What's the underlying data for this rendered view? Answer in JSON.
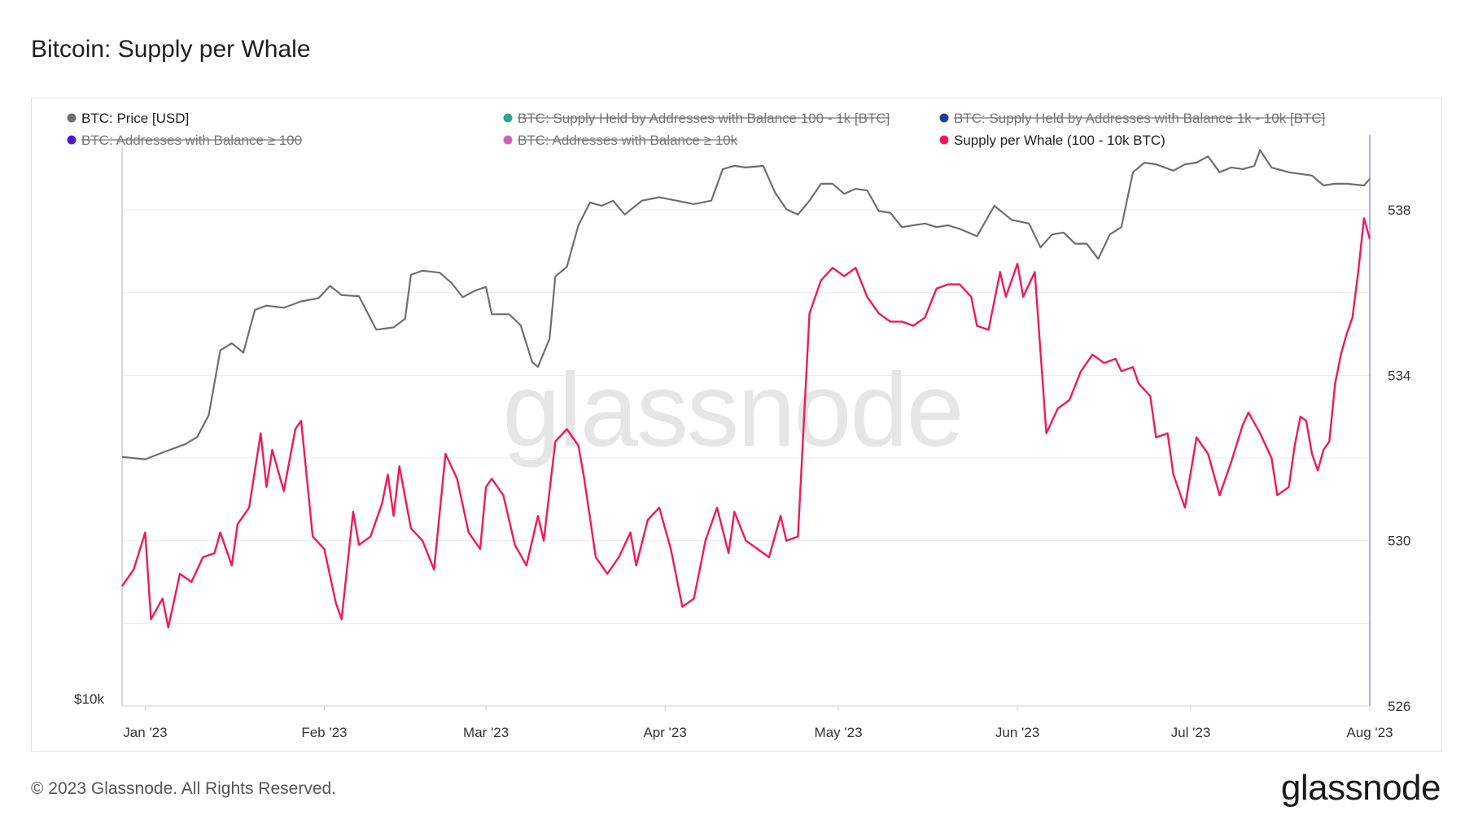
{
  "title": "Bitcoin: Supply per Whale",
  "footer": "© 2023 Glassnode. All Rights Reserved.",
  "brand": "glassnode",
  "watermark": "glassnode",
  "colors": {
    "price": "#6f6f6f",
    "whale": "#f0195a",
    "supply_100_1k": "#26a69a",
    "supply_1k_10k": "#1f3f9f",
    "addr_100": "#4b1ccf",
    "addr_10k": "#d160b8",
    "right_axis_line": "#9b8cf0",
    "grid": "#ebebeb"
  },
  "legend": [
    {
      "label": "BTC: Price [USD]",
      "color_key": "price",
      "active": true
    },
    {
      "label": "BTC: Supply Held by Addresses with Balance 100 - 1k [BTC]",
      "color_key": "supply_100_1k",
      "active": false
    },
    {
      "label": "BTC: Supply Held by Addresses with Balance 1k - 10k [BTC]",
      "color_key": "supply_1k_10k",
      "active": false
    },
    {
      "label": "BTC: Addresses with Balance ≥ 100",
      "color_key": "addr_100",
      "active": false
    },
    {
      "label": "BTC: Addresses with Balance ≥ 10k",
      "color_key": "addr_10k",
      "active": false
    },
    {
      "label": "Supply per Whale (100 - 10k BTC)",
      "color_key": "whale",
      "active": true
    }
  ],
  "chart_data": {
    "type": "line",
    "x_range": [
      "2022-12-28",
      "2023-08-01"
    ],
    "x_ticks": [
      {
        "date": "2023-01-01",
        "label": "Jan '23"
      },
      {
        "date": "2023-02-01",
        "label": "Feb '23"
      },
      {
        "date": "2023-03-01",
        "label": "Mar '23"
      },
      {
        "date": "2023-04-01",
        "label": "Apr '23"
      },
      {
        "date": "2023-05-01",
        "label": "May '23"
      },
      {
        "date": "2023-06-01",
        "label": "Jun '23"
      },
      {
        "date": "2023-07-01",
        "label": "Jul '23"
      },
      {
        "date": "2023-08-01",
        "label": "Aug '23"
      }
    ],
    "y_left": {
      "scale": "log",
      "tick_labels": [
        "$10k"
      ],
      "range": [
        10000,
        40000
      ]
    },
    "y_right": {
      "ticks": [
        526,
        530,
        534,
        538
      ],
      "range": [
        526,
        538.2
      ]
    },
    "grid": true,
    "legend_position": "top",
    "series": [
      {
        "name": "BTC: Price [USD]",
        "axis": "left",
        "color_key": "price",
        "points": [
          [
            "2022-12-28",
            16700
          ],
          [
            "2023-01-01",
            16620
          ],
          [
            "2023-01-04",
            16850
          ],
          [
            "2023-01-08",
            17150
          ],
          [
            "2023-01-10",
            17400
          ],
          [
            "2023-01-12",
            18200
          ],
          [
            "2023-01-14",
            20800
          ],
          [
            "2023-01-16",
            21100
          ],
          [
            "2023-01-18",
            20700
          ],
          [
            "2023-01-20",
            22600
          ],
          [
            "2023-01-22",
            22800
          ],
          [
            "2023-01-25",
            22700
          ],
          [
            "2023-01-28",
            23000
          ],
          [
            "2023-01-31",
            23150
          ],
          [
            "2023-02-02",
            23750
          ],
          [
            "2023-02-04",
            23300
          ],
          [
            "2023-02-07",
            23250
          ],
          [
            "2023-02-10",
            21700
          ],
          [
            "2023-02-13",
            21800
          ],
          [
            "2023-02-15",
            22200
          ],
          [
            "2023-02-16",
            24300
          ],
          [
            "2023-02-18",
            24500
          ],
          [
            "2023-02-21",
            24400
          ],
          [
            "2023-02-23",
            23900
          ],
          [
            "2023-02-25",
            23200
          ],
          [
            "2023-02-27",
            23500
          ],
          [
            "2023-03-01",
            23700
          ],
          [
            "2023-03-02",
            22400
          ],
          [
            "2023-03-05",
            22400
          ],
          [
            "2023-03-07",
            21900
          ],
          [
            "2023-03-09",
            20300
          ],
          [
            "2023-03-10",
            20100
          ],
          [
            "2023-03-12",
            21300
          ],
          [
            "2023-03-13",
            24200
          ],
          [
            "2023-03-15",
            24700
          ],
          [
            "2023-03-17",
            26900
          ],
          [
            "2023-03-19",
            28200
          ],
          [
            "2023-03-21",
            28000
          ],
          [
            "2023-03-23",
            28300
          ],
          [
            "2023-03-25",
            27500
          ],
          [
            "2023-03-28",
            28300
          ],
          [
            "2023-03-31",
            28500
          ],
          [
            "2023-04-03",
            28300
          ],
          [
            "2023-04-06",
            28100
          ],
          [
            "2023-04-09",
            28300
          ],
          [
            "2023-04-11",
            30200
          ],
          [
            "2023-04-13",
            30400
          ],
          [
            "2023-04-15",
            30300
          ],
          [
            "2023-04-18",
            30400
          ],
          [
            "2023-04-20",
            28800
          ],
          [
            "2023-04-22",
            27800
          ],
          [
            "2023-04-24",
            27500
          ],
          [
            "2023-04-26",
            28300
          ],
          [
            "2023-04-28",
            29300
          ],
          [
            "2023-04-30",
            29300
          ],
          [
            "2023-05-02",
            28700
          ],
          [
            "2023-05-04",
            29000
          ],
          [
            "2023-05-06",
            28900
          ],
          [
            "2023-05-08",
            27700
          ],
          [
            "2023-05-10",
            27600
          ],
          [
            "2023-05-12",
            26800
          ],
          [
            "2023-05-14",
            26900
          ],
          [
            "2023-05-16",
            27000
          ],
          [
            "2023-05-18",
            26800
          ],
          [
            "2023-05-20",
            26900
          ],
          [
            "2023-05-22",
            26700
          ],
          [
            "2023-05-25",
            26300
          ],
          [
            "2023-05-28",
            28000
          ],
          [
            "2023-05-31",
            27200
          ],
          [
            "2023-06-03",
            27000
          ],
          [
            "2023-06-05",
            25700
          ],
          [
            "2023-06-07",
            26400
          ],
          [
            "2023-06-09",
            26500
          ],
          [
            "2023-06-11",
            25900
          ],
          [
            "2023-06-13",
            25900
          ],
          [
            "2023-06-15",
            25100
          ],
          [
            "2023-06-17",
            26400
          ],
          [
            "2023-06-19",
            26800
          ],
          [
            "2023-06-21",
            30000
          ],
          [
            "2023-06-23",
            30600
          ],
          [
            "2023-06-25",
            30500
          ],
          [
            "2023-06-28",
            30100
          ],
          [
            "2023-06-30",
            30500
          ],
          [
            "2023-07-02",
            30600
          ],
          [
            "2023-07-04",
            31000
          ],
          [
            "2023-07-06",
            30000
          ],
          [
            "2023-07-08",
            30300
          ],
          [
            "2023-07-10",
            30200
          ],
          [
            "2023-07-12",
            30400
          ],
          [
            "2023-07-13",
            31400
          ],
          [
            "2023-07-15",
            30300
          ],
          [
            "2023-07-18",
            30000
          ],
          [
            "2023-07-20",
            29900
          ],
          [
            "2023-07-22",
            29800
          ],
          [
            "2023-07-24",
            29200
          ],
          [
            "2023-07-26",
            29300
          ],
          [
            "2023-07-28",
            29300
          ],
          [
            "2023-07-31",
            29200
          ],
          [
            "2023-08-01",
            29600
          ]
        ]
      },
      {
        "name": "Supply per Whale (100 - 10k BTC)",
        "axis": "right",
        "color_key": "whale",
        "points": [
          [
            "2022-12-28",
            528.9
          ],
          [
            "2022-12-30",
            529.3
          ],
          [
            "2023-01-01",
            530.2
          ],
          [
            "2023-01-02",
            528.1
          ],
          [
            "2023-01-04",
            528.6
          ],
          [
            "2023-01-05",
            527.9
          ],
          [
            "2023-01-07",
            529.2
          ],
          [
            "2023-01-09",
            529.0
          ],
          [
            "2023-01-11",
            529.6
          ],
          [
            "2023-01-13",
            529.7
          ],
          [
            "2023-01-14",
            530.2
          ],
          [
            "2023-01-16",
            529.4
          ],
          [
            "2023-01-17",
            530.4
          ],
          [
            "2023-01-19",
            530.8
          ],
          [
            "2023-01-21",
            532.6
          ],
          [
            "2023-01-22",
            531.3
          ],
          [
            "2023-01-23",
            532.2
          ],
          [
            "2023-01-25",
            531.2
          ],
          [
            "2023-01-27",
            532.7
          ],
          [
            "2023-01-28",
            532.9
          ],
          [
            "2023-01-30",
            530.1
          ],
          [
            "2023-02-01",
            529.8
          ],
          [
            "2023-02-03",
            528.5
          ],
          [
            "2023-02-04",
            528.1
          ],
          [
            "2023-02-06",
            530.7
          ],
          [
            "2023-02-07",
            529.9
          ],
          [
            "2023-02-09",
            530.1
          ],
          [
            "2023-02-11",
            530.9
          ],
          [
            "2023-02-12",
            531.6
          ],
          [
            "2023-02-13",
            530.6
          ],
          [
            "2023-02-14",
            531.8
          ],
          [
            "2023-02-16",
            530.3
          ],
          [
            "2023-02-18",
            530.0
          ],
          [
            "2023-02-20",
            529.3
          ],
          [
            "2023-02-22",
            532.1
          ],
          [
            "2023-02-23",
            531.8
          ],
          [
            "2023-02-24",
            531.5
          ],
          [
            "2023-02-26",
            530.2
          ],
          [
            "2023-02-28",
            529.8
          ],
          [
            "2023-03-01",
            531.3
          ],
          [
            "2023-03-02",
            531.5
          ],
          [
            "2023-03-04",
            531.1
          ],
          [
            "2023-03-06",
            529.9
          ],
          [
            "2023-03-08",
            529.4
          ],
          [
            "2023-03-10",
            530.6
          ],
          [
            "2023-03-11",
            530.0
          ],
          [
            "2023-03-13",
            532.4
          ],
          [
            "2023-03-15",
            532.7
          ],
          [
            "2023-03-17",
            532.3
          ],
          [
            "2023-03-18",
            531.5
          ],
          [
            "2023-03-20",
            529.6
          ],
          [
            "2023-03-22",
            529.2
          ],
          [
            "2023-03-24",
            529.6
          ],
          [
            "2023-03-26",
            530.2
          ],
          [
            "2023-03-27",
            529.4
          ],
          [
            "2023-03-29",
            530.5
          ],
          [
            "2023-03-31",
            530.8
          ],
          [
            "2023-04-02",
            529.8
          ],
          [
            "2023-04-04",
            528.4
          ],
          [
            "2023-04-06",
            528.6
          ],
          [
            "2023-04-08",
            530.0
          ],
          [
            "2023-04-10",
            530.8
          ],
          [
            "2023-04-12",
            529.7
          ],
          [
            "2023-04-13",
            530.7
          ],
          [
            "2023-04-15",
            530.0
          ],
          [
            "2023-04-17",
            529.8
          ],
          [
            "2023-04-19",
            529.6
          ],
          [
            "2023-04-21",
            530.6
          ],
          [
            "2023-04-22",
            530.0
          ],
          [
            "2023-04-24",
            530.1
          ],
          [
            "2023-04-26",
            535.5
          ],
          [
            "2023-04-28",
            536.3
          ],
          [
            "2023-04-30",
            536.6
          ],
          [
            "2023-05-02",
            536.4
          ],
          [
            "2023-05-04",
            536.6
          ],
          [
            "2023-05-06",
            535.9
          ],
          [
            "2023-05-08",
            535.5
          ],
          [
            "2023-05-10",
            535.3
          ],
          [
            "2023-05-12",
            535.3
          ],
          [
            "2023-05-14",
            535.2
          ],
          [
            "2023-05-16",
            535.4
          ],
          [
            "2023-05-18",
            536.1
          ],
          [
            "2023-05-20",
            536.2
          ],
          [
            "2023-05-22",
            536.2
          ],
          [
            "2023-05-24",
            535.9
          ],
          [
            "2023-05-25",
            535.2
          ],
          [
            "2023-05-27",
            535.1
          ],
          [
            "2023-05-29",
            536.5
          ],
          [
            "2023-05-30",
            535.9
          ],
          [
            "2023-06-01",
            536.7
          ],
          [
            "2023-06-02",
            535.9
          ],
          [
            "2023-06-04",
            536.5
          ],
          [
            "2023-06-06",
            532.6
          ],
          [
            "2023-06-08",
            533.2
          ],
          [
            "2023-06-10",
            533.4
          ],
          [
            "2023-06-12",
            534.1
          ],
          [
            "2023-06-14",
            534.5
          ],
          [
            "2023-06-16",
            534.3
          ],
          [
            "2023-06-18",
            534.4
          ],
          [
            "2023-06-19",
            534.1
          ],
          [
            "2023-06-21",
            534.2
          ],
          [
            "2023-06-22",
            533.8
          ],
          [
            "2023-06-24",
            533.5
          ],
          [
            "2023-06-25",
            532.5
          ],
          [
            "2023-06-27",
            532.6
          ],
          [
            "2023-06-28",
            531.6
          ],
          [
            "2023-06-30",
            530.8
          ],
          [
            "2023-07-02",
            532.5
          ],
          [
            "2023-07-04",
            532.1
          ],
          [
            "2023-07-06",
            531.1
          ],
          [
            "2023-07-08",
            531.9
          ],
          [
            "2023-07-10",
            532.8
          ],
          [
            "2023-07-11",
            533.1
          ],
          [
            "2023-07-13",
            532.6
          ],
          [
            "2023-07-15",
            532.0
          ],
          [
            "2023-07-16",
            531.1
          ],
          [
            "2023-07-18",
            531.3
          ],
          [
            "2023-07-19",
            532.3
          ],
          [
            "2023-07-20",
            533.0
          ],
          [
            "2023-07-21",
            532.9
          ],
          [
            "2023-07-22",
            532.1
          ],
          [
            "2023-07-23",
            531.7
          ],
          [
            "2023-07-24",
            532.2
          ],
          [
            "2023-07-25",
            532.4
          ],
          [
            "2023-07-26",
            533.8
          ],
          [
            "2023-07-27",
            534.5
          ],
          [
            "2023-07-28",
            535.0
          ],
          [
            "2023-07-29",
            535.4
          ],
          [
            "2023-07-30",
            536.5
          ],
          [
            "2023-07-31",
            537.8
          ],
          [
            "2023-08-01",
            537.3
          ]
        ]
      }
    ]
  }
}
